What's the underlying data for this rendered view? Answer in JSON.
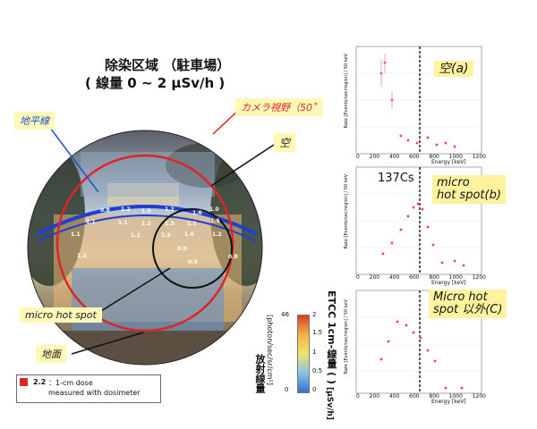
{
  "header": {
    "title": "除染区域 （駐車場）",
    "subtitle": "( 線量 0 ~ 2 μSv/h )"
  },
  "labels": {
    "horizon": "地平線",
    "camera_fov": "カメラ視野（50˚",
    "sky": "空",
    "micro_hot_spot": "micro hot spot",
    "ground": "地面"
  },
  "map_values": [
    "0.8",
    "1.2",
    "1.0",
    "1.2",
    "1.6",
    "1.0",
    "1.1",
    "1.1",
    "1.2",
    "1.3",
    "1.1",
    "1.5",
    "1.1",
    "1.2",
    "1.3",
    "1.6",
    "1.2",
    "0.9",
    "1.2",
    "0.9",
    "0.8"
  ],
  "scale_left": {
    "title": "放射線量",
    "unit": "[photon/sec/sr/cm²]",
    "max": "46",
    "min": "0"
  },
  "scale_right": {
    "title": "ETCC 1cm-線量 ( )",
    "unit": "[μSv/h]",
    "max": "2",
    "ticks": [
      "1.5",
      "1",
      "0.5"
    ],
    "min": "0"
  },
  "legend": {
    "value": "2.2",
    "text1": "：1-cm dose",
    "text2": "measured with dosimeter"
  },
  "spectra": {
    "top": {
      "label": "空(a)"
    },
    "middle": {
      "label1": "micro",
      "label2": "hot spot(b)",
      "isotope": "137Cs"
    },
    "bottom": {
      "label1": "Micro   hot",
      "label2": "spot 以外(C)"
    },
    "y_axis": "Rate [Events/sec/region] / 50 keV",
    "x_axis": "Energy [keV]",
    "x_ticks": [
      "0",
      "200",
      "400",
      "600",
      "800",
      "1000",
      "1200"
    ]
  }
}
